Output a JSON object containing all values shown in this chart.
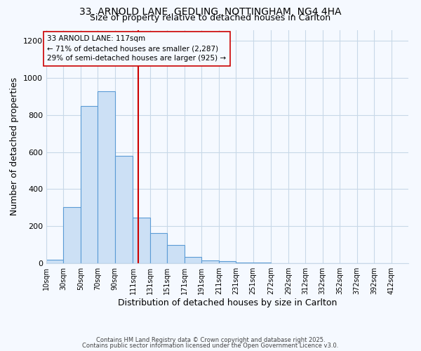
{
  "title1": "33, ARNOLD LANE, GEDLING, NOTTINGHAM, NG4 4HA",
  "title2": "Size of property relative to detached houses in Carlton",
  "xlabel": "Distribution of detached houses by size in Carlton",
  "ylabel": "Number of detached properties",
  "bin_labels": [
    "10sqm",
    "30sqm",
    "50sqm",
    "70sqm",
    "90sqm",
    "111sqm",
    "131sqm",
    "151sqm",
    "171sqm",
    "191sqm",
    "211sqm",
    "231sqm",
    "251sqm",
    "272sqm",
    "292sqm",
    "312sqm",
    "332sqm",
    "352sqm",
    "372sqm",
    "392sqm",
    "412sqm"
  ],
  "bin_edges": [
    10,
    30,
    50,
    70,
    90,
    111,
    131,
    151,
    171,
    191,
    211,
    231,
    251,
    272,
    292,
    312,
    332,
    352,
    372,
    392,
    412
  ],
  "bar_heights": [
    18,
    305,
    848,
    928,
    580,
    247,
    162,
    100,
    35,
    15,
    13,
    5,
    4,
    0,
    0,
    0,
    0,
    0,
    0,
    0
  ],
  "bar_color": "#cce0f5",
  "bar_edge_color": "#5b9bd5",
  "vline_x": 117,
  "vline_color": "#cc0000",
  "annotation_title": "33 ARNOLD LANE: 117sqm",
  "annotation_line1": "← 71% of detached houses are smaller (2,287)",
  "annotation_line2": "29% of semi-detached houses are larger (925) →",
  "annotation_box_edge": "#cc0000",
  "ylim": [
    0,
    1260
  ],
  "yticks": [
    0,
    200,
    400,
    600,
    800,
    1000,
    1200
  ],
  "footer1": "Contains HM Land Registry data © Crown copyright and database right 2025.",
  "footer2": "Contains public sector information licensed under the Open Government Licence v3.0.",
  "bg_color": "#f5f9ff",
  "grid_color": "#c8d8e8",
  "title1_fontsize": 10,
  "title2_fontsize": 9,
  "xlabel_fontsize": 9,
  "ylabel_fontsize": 9,
  "tick_fontsize": 7,
  "annotation_fontsize": 7.5,
  "footer_fontsize": 6
}
